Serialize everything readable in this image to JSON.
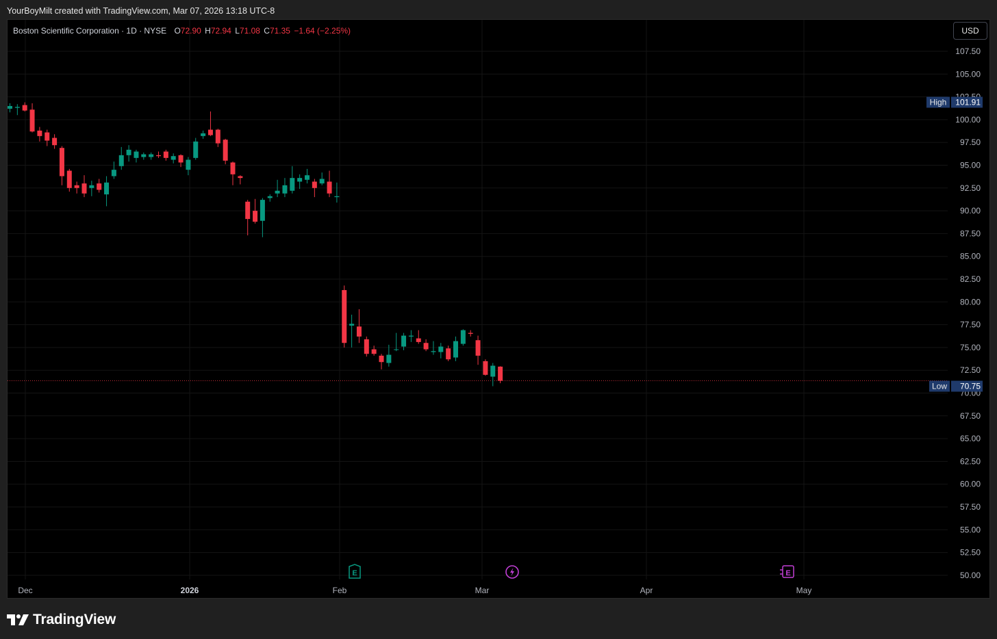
{
  "header": {
    "watermark": "YourBoyMilt created with TradingView.com, Mar 07, 2026 13:18 UTC-8"
  },
  "legend": {
    "symbol": "Boston Scientific Corporation · 1D · NYSE",
    "o_label": "O",
    "o_value": "72.90",
    "h_label": "H",
    "h_value": "72.94",
    "l_label": "L",
    "l_value": "71.08",
    "c_label": "C",
    "c_value": "71.35",
    "change": "−1.64 (−2.25%)"
  },
  "currency_button": "USD",
  "footer": {
    "brand": "TradingView"
  },
  "colors": {
    "up": "#089981",
    "down": "#f23645",
    "badge_bg": "#1f3a6b",
    "price_line": "#f23645",
    "grid": "#141414"
  },
  "markers": [
    {
      "icon": "earnings-icon",
      "label": "E",
      "color": "#089981",
      "date": "Feb 04"
    },
    {
      "icon": "lightning-icon",
      "label": "⚡",
      "color": "#c23fd6",
      "date": "Mar 06"
    },
    {
      "icon": "earnings-upcoming-icon",
      "label": "E",
      "color": "#c23fd6",
      "date": "Apr 29"
    }
  ],
  "chart_data": {
    "type": "candlestick",
    "title": "Boston Scientific Corporation · 1D · NYSE",
    "currency": "USD",
    "ylim": [
      50,
      108
    ],
    "y_ticks": [
      "107.50",
      "105.00",
      "102.50",
      "100.00",
      "97.50",
      "95.00",
      "92.50",
      "90.00",
      "87.50",
      "85.00",
      "82.50",
      "80.00",
      "77.50",
      "75.00",
      "72.50",
      "70.00",
      "67.50",
      "65.00",
      "62.50",
      "60.00",
      "57.50",
      "55.00",
      "52.50",
      "50.00"
    ],
    "x_ticks": [
      {
        "label": "Dec",
        "bold": false
      },
      {
        "label": "2026",
        "bold": true
      },
      {
        "label": "Feb",
        "bold": false
      },
      {
        "label": "Mar",
        "bold": false
      },
      {
        "label": "Apr",
        "bold": false
      },
      {
        "label": "May",
        "bold": false
      }
    ],
    "high_label": "High",
    "high_value": "101.91",
    "low_label": "Low",
    "low_value": "70.75",
    "last_price": 71.35,
    "candles": [
      {
        "date": "Nov 28",
        "o": 101.2,
        "h": 101.8,
        "l": 100.8,
        "c": 101.5
      },
      {
        "date": "Dec 01",
        "o": 101.3,
        "h": 101.7,
        "l": 100.5,
        "c": 101.4
      },
      {
        "date": "Dec 02",
        "o": 101.6,
        "h": 101.9,
        "l": 100.9,
        "c": 101.0
      },
      {
        "date": "Dec 03",
        "o": 101.1,
        "h": 101.8,
        "l": 98.6,
        "c": 98.7
      },
      {
        "date": "Dec 04",
        "o": 98.8,
        "h": 99.2,
        "l": 97.6,
        "c": 98.2
      },
      {
        "date": "Dec 05",
        "o": 98.6,
        "h": 98.9,
        "l": 97.1,
        "c": 97.7
      },
      {
        "date": "Dec 08",
        "o": 98.0,
        "h": 98.4,
        "l": 96.8,
        "c": 97.2
      },
      {
        "date": "Dec 09",
        "o": 96.9,
        "h": 97.1,
        "l": 92.8,
        "c": 93.8
      },
      {
        "date": "Dec 10",
        "o": 94.4,
        "h": 94.6,
        "l": 92.1,
        "c": 92.5
      },
      {
        "date": "Dec 11",
        "o": 92.8,
        "h": 93.2,
        "l": 91.9,
        "c": 92.5
      },
      {
        "date": "Dec 12",
        "o": 93.0,
        "h": 93.9,
        "l": 91.5,
        "c": 91.9
      },
      {
        "date": "Dec 15",
        "o": 92.5,
        "h": 93.3,
        "l": 91.6,
        "c": 92.8
      },
      {
        "date": "Dec 16",
        "o": 93.0,
        "h": 93.5,
        "l": 92.0,
        "c": 92.3
      },
      {
        "date": "Dec 17",
        "o": 91.8,
        "h": 93.8,
        "l": 90.5,
        "c": 93.1
      },
      {
        "date": "Dec 18",
        "o": 93.8,
        "h": 95.4,
        "l": 93.5,
        "c": 94.5
      },
      {
        "date": "Dec 19",
        "o": 94.9,
        "h": 97.0,
        "l": 94.5,
        "c": 96.1
      },
      {
        "date": "Dec 22",
        "o": 96.1,
        "h": 97.2,
        "l": 95.4,
        "c": 96.7
      },
      {
        "date": "Dec 23",
        "o": 95.8,
        "h": 96.7,
        "l": 95.3,
        "c": 96.5
      },
      {
        "date": "Dec 24",
        "o": 95.9,
        "h": 96.4,
        "l": 95.6,
        "c": 96.2
      },
      {
        "date": "Dec 26",
        "o": 95.9,
        "h": 96.4,
        "l": 95.6,
        "c": 96.2
      },
      {
        "date": "Dec 29",
        "o": 96.1,
        "h": 96.5,
        "l": 95.8,
        "c": 96.0
      },
      {
        "date": "Dec 30",
        "o": 96.5,
        "h": 96.7,
        "l": 95.5,
        "c": 95.8
      },
      {
        "date": "Dec 31",
        "o": 95.6,
        "h": 96.3,
        "l": 95.2,
        "c": 96.0
      },
      {
        "date": "Jan 02",
        "o": 96.1,
        "h": 96.2,
        "l": 94.8,
        "c": 95.3
      },
      {
        "date": "Jan 05",
        "o": 94.5,
        "h": 95.9,
        "l": 93.9,
        "c": 95.6
      },
      {
        "date": "Jan 06",
        "o": 95.8,
        "h": 98.0,
        "l": 95.6,
        "c": 97.6
      },
      {
        "date": "Jan 07",
        "o": 98.2,
        "h": 98.8,
        "l": 97.9,
        "c": 98.5
      },
      {
        "date": "Jan 08",
        "o": 98.9,
        "h": 100.9,
        "l": 98.2,
        "c": 98.3
      },
      {
        "date": "Jan 09",
        "o": 98.9,
        "h": 99.0,
        "l": 97.0,
        "c": 97.4
      },
      {
        "date": "Jan 12",
        "o": 97.8,
        "h": 97.9,
        "l": 95.1,
        "c": 95.5
      },
      {
        "date": "Jan 13",
        "o": 95.3,
        "h": 95.4,
        "l": 92.8,
        "c": 94.0
      },
      {
        "date": "Jan 14",
        "o": 93.8,
        "h": 93.9,
        "l": 92.9,
        "c": 93.6
      },
      {
        "date": "Jan 15",
        "o": 91.0,
        "h": 91.2,
        "l": 87.3,
        "c": 89.1
      },
      {
        "date": "Jan 16",
        "o": 90.0,
        "h": 91.3,
        "l": 88.6,
        "c": 88.8
      },
      {
        "date": "Jan 20",
        "o": 88.9,
        "h": 91.4,
        "l": 87.1,
        "c": 91.2
      },
      {
        "date": "Jan 21",
        "o": 91.4,
        "h": 91.8,
        "l": 91.0,
        "c": 91.6
      },
      {
        "date": "Jan 22",
        "o": 91.9,
        "h": 93.4,
        "l": 91.5,
        "c": 92.2
      },
      {
        "date": "Jan 23",
        "o": 91.9,
        "h": 93.6,
        "l": 91.5,
        "c": 92.8
      },
      {
        "date": "Jan 26",
        "o": 92.2,
        "h": 94.9,
        "l": 91.9,
        "c": 93.6
      },
      {
        "date": "Jan 27",
        "o": 93.2,
        "h": 94.0,
        "l": 92.4,
        "c": 93.6
      },
      {
        "date": "Jan 28",
        "o": 93.4,
        "h": 94.6,
        "l": 93.0,
        "c": 93.9
      },
      {
        "date": "Jan 29",
        "o": 93.2,
        "h": 93.5,
        "l": 91.5,
        "c": 92.5
      },
      {
        "date": "Jan 30",
        "o": 93.0,
        "h": 94.2,
        "l": 92.8,
        "c": 93.5
      },
      {
        "date": "Feb 02",
        "o": 93.2,
        "h": 94.4,
        "l": 91.5,
        "c": 91.9
      },
      {
        "date": "Feb 03",
        "o": 91.5,
        "h": 93.1,
        "l": 90.9,
        "c": 91.6
      },
      {
        "date": "Feb 04",
        "o": 81.3,
        "h": 81.8,
        "l": 75.0,
        "c": 75.5
      },
      {
        "date": "Feb 05",
        "o": 77.4,
        "h": 78.6,
        "l": 75.0,
        "c": 77.6
      },
      {
        "date": "Feb 06",
        "o": 77.3,
        "h": 79.2,
        "l": 75.5,
        "c": 76.2
      },
      {
        "date": "Feb 09",
        "o": 75.9,
        "h": 76.2,
        "l": 74.0,
        "c": 74.3
      },
      {
        "date": "Feb 10",
        "o": 74.8,
        "h": 75.2,
        "l": 74.1,
        "c": 74.3
      },
      {
        "date": "Feb 11",
        "o": 74.1,
        "h": 74.3,
        "l": 72.6,
        "c": 73.4
      },
      {
        "date": "Feb 12",
        "o": 73.3,
        "h": 75.3,
        "l": 72.9,
        "c": 74.2
      },
      {
        "date": "Feb 13",
        "o": 74.8,
        "h": 76.6,
        "l": 74.6,
        "c": 74.8
      },
      {
        "date": "Feb 17",
        "o": 75.1,
        "h": 76.6,
        "l": 74.7,
        "c": 76.3
      },
      {
        "date": "Feb 18",
        "o": 76.2,
        "h": 76.9,
        "l": 75.6,
        "c": 76.3
      },
      {
        "date": "Feb 19",
        "o": 76.0,
        "h": 76.9,
        "l": 75.4,
        "c": 75.6
      },
      {
        "date": "Feb 20",
        "o": 75.5,
        "h": 75.9,
        "l": 74.6,
        "c": 74.8
      },
      {
        "date": "Feb 23",
        "o": 74.5,
        "h": 75.7,
        "l": 74.2,
        "c": 74.6
      },
      {
        "date": "Feb 24",
        "o": 74.5,
        "h": 75.5,
        "l": 73.8,
        "c": 75.1
      },
      {
        "date": "Feb 25",
        "o": 74.9,
        "h": 75.2,
        "l": 73.5,
        "c": 73.7
      },
      {
        "date": "Feb 26",
        "o": 73.9,
        "h": 76.2,
        "l": 73.5,
        "c": 75.7
      },
      {
        "date": "Feb 27",
        "o": 75.4,
        "h": 77.0,
        "l": 75.2,
        "c": 76.9
      },
      {
        "date": "Mar 02",
        "o": 76.6,
        "h": 76.9,
        "l": 76.2,
        "c": 76.5
      },
      {
        "date": "Mar 03",
        "o": 75.8,
        "h": 76.3,
        "l": 73.1,
        "c": 74.1
      },
      {
        "date": "Mar 04",
        "o": 73.5,
        "h": 73.7,
        "l": 71.9,
        "c": 72.0
      },
      {
        "date": "Mar 05",
        "o": 71.8,
        "h": 73.3,
        "l": 70.75,
        "c": 73.0
      },
      {
        "date": "Mar 06",
        "o": 72.9,
        "h": 72.94,
        "l": 71.08,
        "c": 71.35
      }
    ]
  }
}
